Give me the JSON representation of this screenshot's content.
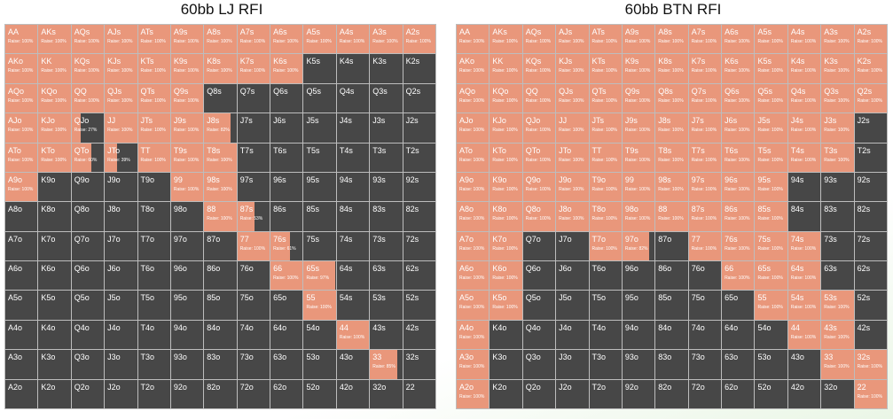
{
  "grids": [
    {
      "title": "60bb LJ RFI",
      "hands": [
        [
          "AA",
          "AKs",
          "AQs",
          "AJs",
          "ATs",
          "A9s",
          "A8s",
          "A7s",
          "A6s",
          "A5s",
          "A4s",
          "A3s",
          "A2s"
        ],
        [
          "AKo",
          "KK",
          "KQs",
          "KJs",
          "KTs",
          "K9s",
          "K8s",
          "K7s",
          "K6s",
          "K5s",
          "K4s",
          "K3s",
          "K2s"
        ],
        [
          "AQo",
          "KQo",
          "QQ",
          "QJs",
          "QTs",
          "Q9s",
          "Q8s",
          "Q7s",
          "Q6s",
          "Q5s",
          "Q4s",
          "Q3s",
          "Q2s"
        ],
        [
          "AJo",
          "KJo",
          "QJo",
          "JJ",
          "JTs",
          "J9s",
          "J8s",
          "J7s",
          "J6s",
          "J5s",
          "J4s",
          "J3s",
          "J2s"
        ],
        [
          "ATo",
          "KTo",
          "QTo",
          "JTo",
          "TT",
          "T9s",
          "T8s",
          "T7s",
          "T6s",
          "T5s",
          "T4s",
          "T3s",
          "T2s"
        ],
        [
          "A9o",
          "K9o",
          "Q9o",
          "J9o",
          "T9o",
          "99",
          "98s",
          "97s",
          "96s",
          "95s",
          "94s",
          "93s",
          "92s"
        ],
        [
          "A8o",
          "K8o",
          "Q8o",
          "J8o",
          "T8o",
          "98o",
          "88",
          "87s",
          "86s",
          "85s",
          "84s",
          "83s",
          "82s"
        ],
        [
          "A7o",
          "K7o",
          "Q7o",
          "J7o",
          "T7o",
          "97o",
          "87o",
          "77",
          "76s",
          "75s",
          "74s",
          "73s",
          "72s"
        ],
        [
          "A6o",
          "K6o",
          "Q6o",
          "J6o",
          "T6o",
          "96o",
          "86o",
          "76o",
          "66",
          "65s",
          "64s",
          "63s",
          "62s"
        ],
        [
          "A5o",
          "K5o",
          "Q5o",
          "J5o",
          "T5o",
          "95o",
          "85o",
          "75o",
          "65o",
          "55",
          "54s",
          "53s",
          "52s"
        ],
        [
          "A4o",
          "K4o",
          "Q4o",
          "J4o",
          "T4o",
          "94o",
          "84o",
          "74o",
          "64o",
          "54o",
          "44",
          "43s",
          "42s"
        ],
        [
          "A3o",
          "K3o",
          "Q3o",
          "J3o",
          "T3o",
          "93o",
          "83o",
          "73o",
          "63o",
          "53o",
          "43o",
          "33",
          "32s"
        ],
        [
          "A2o",
          "K2o",
          "Q2o",
          "J2o",
          "T2o",
          "92o",
          "82o",
          "72o",
          "62o",
          "52o",
          "42o",
          "32o",
          "22"
        ]
      ],
      "raise": [
        [
          100,
          100,
          100,
          100,
          100,
          100,
          100,
          100,
          100,
          100,
          100,
          100,
          100
        ],
        [
          100,
          100,
          100,
          100,
          100,
          100,
          100,
          100,
          100,
          null,
          null,
          null,
          null
        ],
        [
          100,
          100,
          100,
          100,
          100,
          100,
          null,
          null,
          null,
          null,
          null,
          null,
          null
        ],
        [
          100,
          100,
          27,
          100,
          100,
          100,
          82,
          null,
          null,
          null,
          null,
          null,
          null
        ],
        [
          100,
          100,
          60,
          39,
          100,
          100,
          100,
          null,
          null,
          null,
          null,
          null,
          null
        ],
        [
          100,
          null,
          null,
          null,
          null,
          100,
          100,
          null,
          null,
          null,
          null,
          null,
          null
        ],
        [
          null,
          null,
          null,
          null,
          null,
          null,
          100,
          53,
          null,
          null,
          null,
          null,
          null
        ],
        [
          null,
          null,
          null,
          null,
          null,
          null,
          null,
          100,
          61,
          null,
          null,
          null,
          null
        ],
        [
          null,
          null,
          null,
          null,
          null,
          null,
          null,
          null,
          100,
          97,
          null,
          null,
          null
        ],
        [
          null,
          null,
          null,
          null,
          null,
          null,
          null,
          null,
          null,
          100,
          null,
          null,
          null
        ],
        [
          null,
          null,
          null,
          null,
          null,
          null,
          null,
          null,
          null,
          null,
          100,
          null,
          null
        ],
        [
          null,
          null,
          null,
          null,
          null,
          null,
          null,
          null,
          null,
          null,
          null,
          85,
          null
        ],
        [
          null,
          null,
          null,
          null,
          null,
          null,
          null,
          null,
          null,
          null,
          null,
          null,
          null
        ]
      ],
      "raise_labels": [
        [
          "Raise: 100%",
          "Raise: 100%",
          "Raise: 100%",
          "Raise: 100%",
          "Raise: 100%",
          "Raise: 100%",
          "Raise: 100%",
          "Raise: 100%",
          "Raise: 100%",
          "Raise: 100%",
          "Raise: 100%",
          "Raise: 100%",
          "Raise: 100%"
        ],
        [
          "Raise: 100%",
          "Raise: 100%",
          "Raise: 100%",
          "Raise: 100%",
          "Raise: 100%",
          "Raise: 100%",
          "Raise: 100%",
          "Raise: 100%",
          "Raise: 100%",
          null,
          null,
          null,
          null
        ],
        [
          "Raise: 100%",
          "Raise: 100%",
          "Raise: 100%",
          "Raise: 100%",
          "Raise: 100%",
          "Raise: 100%",
          null,
          null,
          null,
          null,
          null,
          null,
          null
        ],
        [
          "Raise: 100%",
          "Raise: 100%",
          "Raise: 27%",
          "Raise: 100%",
          "Raise: 100%",
          "Raise: 100%",
          "Raise: 82%",
          null,
          null,
          null,
          null,
          null,
          null
        ],
        [
          "Raise: 100%",
          "Raise: 100%",
          "Raise: 60%",
          "Raise: 39%",
          "Raise: 100%",
          "Raise: 100%",
          "Raise: 100%",
          null,
          null,
          null,
          null,
          null,
          null
        ],
        [
          "Raise: 100%",
          null,
          null,
          null,
          null,
          "Raise: 100%",
          "Raise: 100%",
          null,
          null,
          null,
          null,
          null,
          null
        ],
        [
          null,
          null,
          null,
          null,
          null,
          null,
          "Raise: 100%",
          "Raise: 53%",
          null,
          null,
          null,
          null,
          null
        ],
        [
          null,
          null,
          null,
          null,
          null,
          null,
          null,
          "Raise: 100%",
          "Raise: 61%",
          null,
          null,
          null,
          null
        ],
        [
          null,
          null,
          null,
          null,
          null,
          null,
          null,
          null,
          "Raise: 100%",
          "Raise: 97%",
          null,
          null,
          null
        ],
        [
          null,
          null,
          null,
          null,
          null,
          null,
          null,
          null,
          null,
          "Raise: 100%",
          null,
          null,
          null
        ],
        [
          null,
          null,
          null,
          null,
          null,
          null,
          null,
          null,
          null,
          null,
          "Raise: 100%",
          null,
          null
        ],
        [
          null,
          null,
          null,
          null,
          null,
          null,
          null,
          null,
          null,
          null,
          null,
          "Raise: 85%",
          null
        ],
        [
          null,
          null,
          null,
          null,
          null,
          null,
          null,
          null,
          null,
          null,
          null,
          null,
          null
        ]
      ]
    },
    {
      "title": "60bb BTN RFI",
      "hands": [
        [
          "AA",
          "AKs",
          "AQs",
          "AJs",
          "ATs",
          "A9s",
          "A8s",
          "A7s",
          "A6s",
          "A5s",
          "A4s",
          "A3s",
          "A2s"
        ],
        [
          "AKo",
          "KK",
          "KQs",
          "KJs",
          "KTs",
          "K9s",
          "K8s",
          "K7s",
          "K6s",
          "K5s",
          "K4s",
          "K3s",
          "K2s"
        ],
        [
          "AQo",
          "KQo",
          "QQ",
          "QJs",
          "QTs",
          "Q9s",
          "Q8s",
          "Q7s",
          "Q6s",
          "Q5s",
          "Q4s",
          "Q3s",
          "Q2s"
        ],
        [
          "AJo",
          "KJo",
          "QJo",
          "JJ",
          "JTs",
          "J9s",
          "J8s",
          "J7s",
          "J6s",
          "J5s",
          "J4s",
          "J3s",
          "J2s"
        ],
        [
          "ATo",
          "KTo",
          "QTo",
          "JTo",
          "TT",
          "T9s",
          "T8s",
          "T7s",
          "T6s",
          "T5s",
          "T4s",
          "T3s",
          "T2s"
        ],
        [
          "A9o",
          "K9o",
          "Q9o",
          "J9o",
          "T9o",
          "99",
          "98s",
          "97s",
          "96s",
          "95s",
          "94s",
          "93s",
          "92s"
        ],
        [
          "A8o",
          "K8o",
          "Q8o",
          "J8o",
          "T8o",
          "98o",
          "88",
          "87s",
          "86s",
          "85s",
          "84s",
          "83s",
          "82s"
        ],
        [
          "A7o",
          "K7o",
          "Q7o",
          "J7o",
          "T7o",
          "97o",
          "87o",
          "77",
          "76s",
          "75s",
          "74s",
          "73s",
          "72s"
        ],
        [
          "A6o",
          "K6o",
          "Q6o",
          "J6o",
          "T6o",
          "96o",
          "86o",
          "76o",
          "66",
          "65s",
          "64s",
          "63s",
          "62s"
        ],
        [
          "A5o",
          "K5o",
          "Q5o",
          "J5o",
          "T5o",
          "95o",
          "85o",
          "75o",
          "65o",
          "55",
          "54s",
          "53s",
          "52s"
        ],
        [
          "A4o",
          "K4o",
          "Q4o",
          "J4o",
          "T4o",
          "94o",
          "84o",
          "74o",
          "64o",
          "54o",
          "44",
          "43s",
          "42s"
        ],
        [
          "A3o",
          "K3o",
          "Q3o",
          "J3o",
          "T3o",
          "93o",
          "83o",
          "73o",
          "63o",
          "53o",
          "43o",
          "33",
          "32s"
        ],
        [
          "A2o",
          "K2o",
          "Q2o",
          "J2o",
          "T2o",
          "92o",
          "82o",
          "72o",
          "62o",
          "52o",
          "42o",
          "32o",
          "22"
        ]
      ],
      "raise": [
        [
          100,
          100,
          100,
          100,
          100,
          100,
          100,
          100,
          100,
          100,
          100,
          100,
          100
        ],
        [
          100,
          100,
          100,
          100,
          100,
          100,
          100,
          100,
          100,
          100,
          100,
          100,
          100
        ],
        [
          100,
          100,
          100,
          100,
          100,
          100,
          100,
          100,
          100,
          100,
          100,
          100,
          100
        ],
        [
          100,
          100,
          100,
          100,
          100,
          100,
          100,
          100,
          100,
          100,
          100,
          100,
          null
        ],
        [
          100,
          100,
          100,
          100,
          100,
          100,
          100,
          100,
          100,
          100,
          100,
          100,
          null
        ],
        [
          100,
          100,
          100,
          100,
          100,
          100,
          100,
          100,
          100,
          100,
          null,
          null,
          null
        ],
        [
          100,
          100,
          100,
          100,
          100,
          100,
          100,
          100,
          100,
          100,
          null,
          null,
          null
        ],
        [
          100,
          100,
          null,
          null,
          100,
          82,
          null,
          100,
          100,
          100,
          100,
          null,
          null
        ],
        [
          100,
          100,
          null,
          null,
          null,
          null,
          null,
          null,
          100,
          100,
          100,
          null,
          null
        ],
        [
          100,
          100,
          null,
          null,
          null,
          null,
          null,
          null,
          null,
          100,
          100,
          100,
          null
        ],
        [
          100,
          null,
          null,
          null,
          null,
          null,
          null,
          null,
          null,
          null,
          100,
          100,
          null
        ],
        [
          100,
          null,
          null,
          null,
          null,
          null,
          null,
          null,
          null,
          null,
          null,
          100,
          100
        ],
        [
          100,
          null,
          null,
          null,
          null,
          null,
          null,
          null,
          null,
          null,
          null,
          null,
          100
        ]
      ],
      "raise_labels": [
        [
          "Raise: 100%",
          "Raise: 100%",
          "Raise: 100%",
          "Raise: 100%",
          "Raise: 100%",
          "Raise: 100%",
          "Raise: 100%",
          "Raise: 100%",
          "Raise: 100%",
          "Raise: 100%",
          "Raise: 100%",
          "Raise: 100%",
          "Raise: 100%"
        ],
        [
          "Raise: 100%",
          "Raise: 100%",
          "Raise: 100%",
          "Raise: 100%",
          "Raise: 100%",
          "Raise: 100%",
          "Raise: 100%",
          "Raise: 100%",
          "Raise: 100%",
          "Raise: 100%",
          "Raise: 100%",
          "Raise: 100%",
          "Raise: 100%"
        ],
        [
          "Raise: 100%",
          "Raise: 100%",
          "Raise: 100%",
          "Raise: 100%",
          "Raise: 100%",
          "Raise: 100%",
          "Raise: 100%",
          "Raise: 100%",
          "Raise: 100%",
          "Raise: 100%",
          "Raise: 100%",
          "Raise: 100%",
          "Raise: 100%"
        ],
        [
          "Raise: 100%",
          "Raise: 100%",
          "Raise: 100%",
          "Raise: 100%",
          "Raise: 100%",
          "Raise: 100%",
          "Raise: 100%",
          "Raise: 100%",
          "Raise: 100%",
          "Raise: 100%",
          "Raise: 100%",
          "Raise: 100%",
          null
        ],
        [
          "Raise: 100%",
          "Raise: 100%",
          "Raise: 100%",
          "Raise: 100%",
          "Raise: 100%",
          "Raise: 100%",
          "Raise: 100%",
          "Raise: 100%",
          "Raise: 100%",
          "Raise: 100%",
          "Raise: 100%",
          "Raise: 100%",
          null
        ],
        [
          "Raise: 100%",
          "Raise: 100%",
          "Raise: 100%",
          "Raise: 100%",
          "Raise: 100%",
          "Raise: 100%",
          "Raise: 100%",
          "Raise: 100%",
          "Raise: 100%",
          "Raise: 100%",
          null,
          null,
          null
        ],
        [
          "Raise: 100%",
          "Raise: 100%",
          "Raise: 100%",
          "Raise: 100%",
          "Raise: 100%",
          "Raise: 100%",
          "Raise: 100%",
          "Raise: 100%",
          "Raise: 100%",
          "Raise: 100%",
          null,
          null,
          null
        ],
        [
          "Raise: 100%",
          "Raise: 100%",
          null,
          null,
          "Raise: 100%",
          "Raise: 82%",
          null,
          "Raise: 100%",
          "Raise: 100%",
          "Raise: 100%",
          "Raise: 100%",
          null,
          null
        ],
        [
          "Raise: 100%",
          "Raise: 100%",
          null,
          null,
          null,
          null,
          null,
          null,
          "Raise: 100%",
          "Raise: 100%",
          "Raise: 100%",
          null,
          null
        ],
        [
          "Raise: 100%",
          "Raise: 100%",
          null,
          null,
          null,
          null,
          null,
          null,
          null,
          "Raise: 100%",
          "Raise: 100%",
          "Raise: 100%",
          null
        ],
        [
          "Raise: 100%",
          null,
          null,
          null,
          null,
          null,
          null,
          null,
          null,
          null,
          "Raise: 100%",
          "Raise: 100%",
          null
        ],
        [
          "Raise: 100%",
          null,
          null,
          null,
          null,
          null,
          null,
          null,
          null,
          null,
          null,
          "Raise: 100%",
          "Raise: 100%"
        ],
        [
          "Raise: 100%",
          null,
          null,
          null,
          null,
          null,
          null,
          null,
          null,
          null,
          null,
          null,
          "Raise: 100%"
        ]
      ]
    }
  ]
}
